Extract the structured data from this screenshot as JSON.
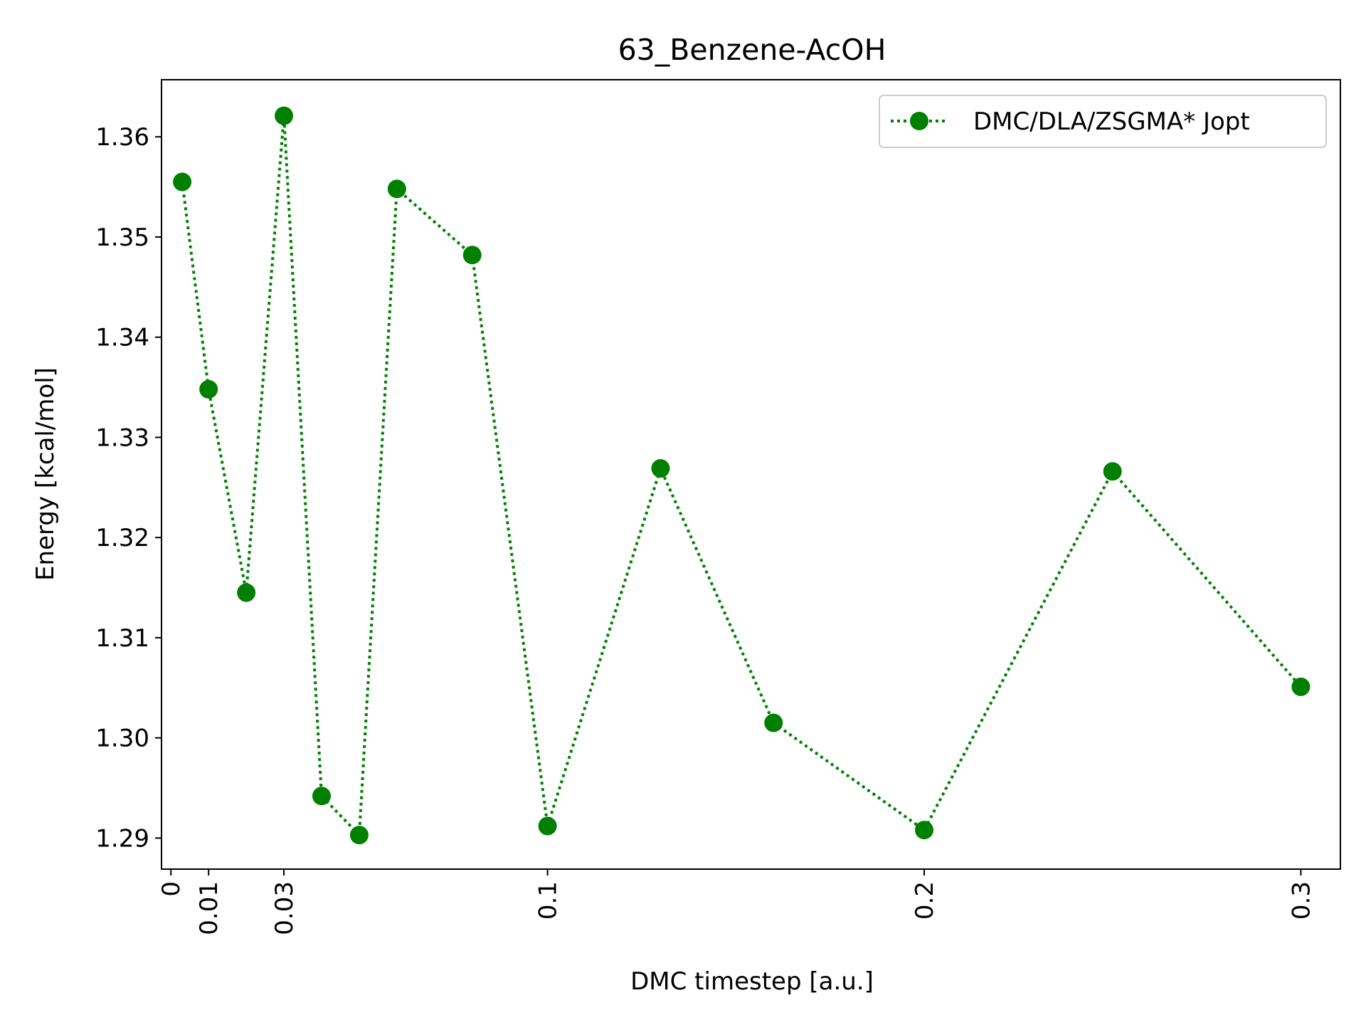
{
  "chart_data": {
    "type": "line",
    "title": "63_Benzene-AcOH",
    "xlabel": "DMC timestep [a.u.]",
    "ylabel": "Energy [kcal/mol]",
    "xlim": [
      -0.0025,
      0.3105
    ],
    "ylim": [
      1.2869,
      1.3657
    ],
    "grid": false,
    "legend_position": "top-right",
    "x_ticks": [
      0,
      0.01,
      0.03,
      0.1,
      0.2,
      0.3
    ],
    "x_tick_labels": [
      "0",
      "0.01",
      "0.03",
      "0.1",
      "0.2",
      "0.3"
    ],
    "x_tick_rotation": 90,
    "y_ticks": [
      1.29,
      1.3,
      1.31,
      1.32,
      1.33,
      1.34,
      1.35,
      1.36
    ],
    "y_tick_labels": [
      "1.29",
      "1.30",
      "1.31",
      "1.32",
      "1.33",
      "1.34",
      "1.35",
      "1.36"
    ],
    "series": [
      {
        "name": "DMC/DLA/ZSGMA* Jopt",
        "color": "#008000",
        "line_style": "dotted",
        "marker": "circle",
        "x": [
          0.003,
          0.01,
          0.02,
          0.03,
          0.04,
          0.05,
          0.06,
          0.08,
          0.1,
          0.13,
          0.16,
          0.2,
          0.25,
          0.3
        ],
        "y": [
          1.3555,
          1.3348,
          1.3145,
          1.3621,
          1.2942,
          1.2903,
          1.3548,
          1.3482,
          1.2912,
          1.3269,
          1.3015,
          1.2908,
          1.3266,
          1.3051
        ]
      }
    ]
  }
}
